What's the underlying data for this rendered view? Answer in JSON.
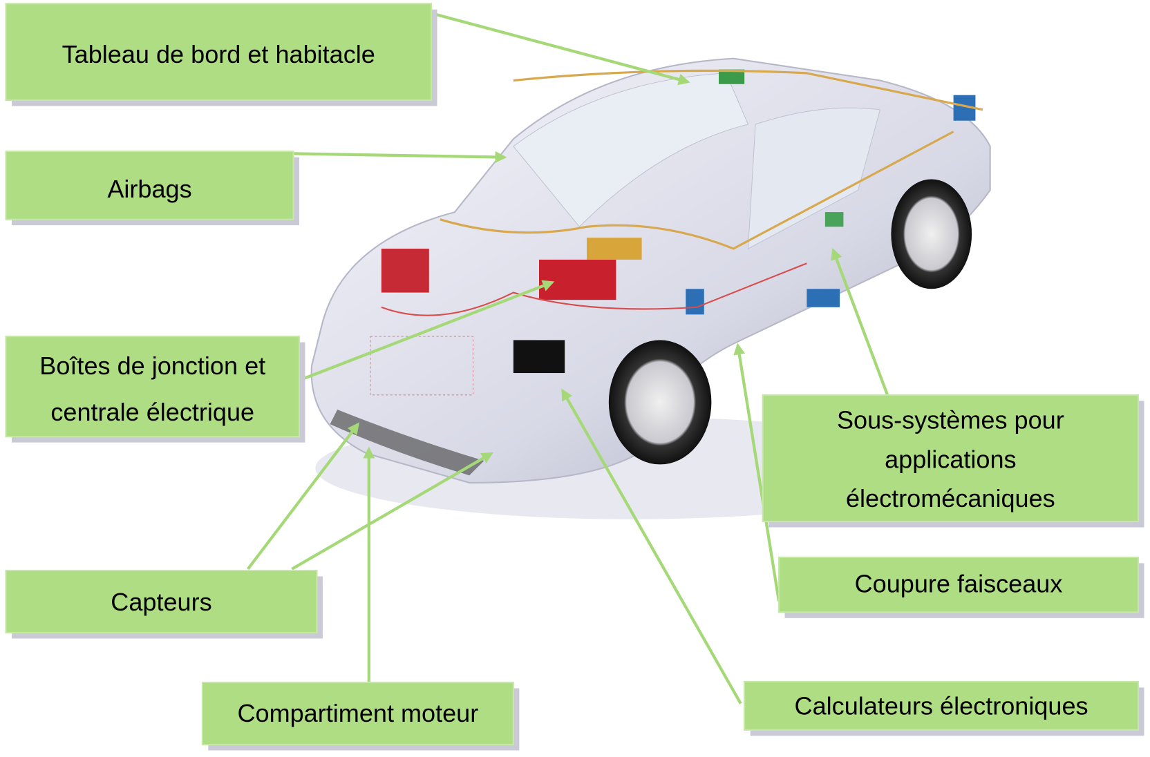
{
  "labels": [
    {
      "lines": [
        "Tableau de bord et habitacle"
      ]
    },
    {
      "lines": [
        "Airbags"
      ]
    },
    {
      "lines": [
        "Boîtes de jonction et",
        "centrale électrique"
      ]
    },
    {
      "lines": [
        "Capteurs"
      ]
    },
    {
      "lines": [
        "Compartiment moteur"
      ]
    },
    {
      "lines": [
        "Calculateurs électroniques"
      ]
    },
    {
      "lines": [
        "Sous-systèmes pour",
        "applications",
        "électromécaniques"
      ]
    },
    {
      "lines": [
        "Coupure faisceaux"
      ]
    }
  ]
}
